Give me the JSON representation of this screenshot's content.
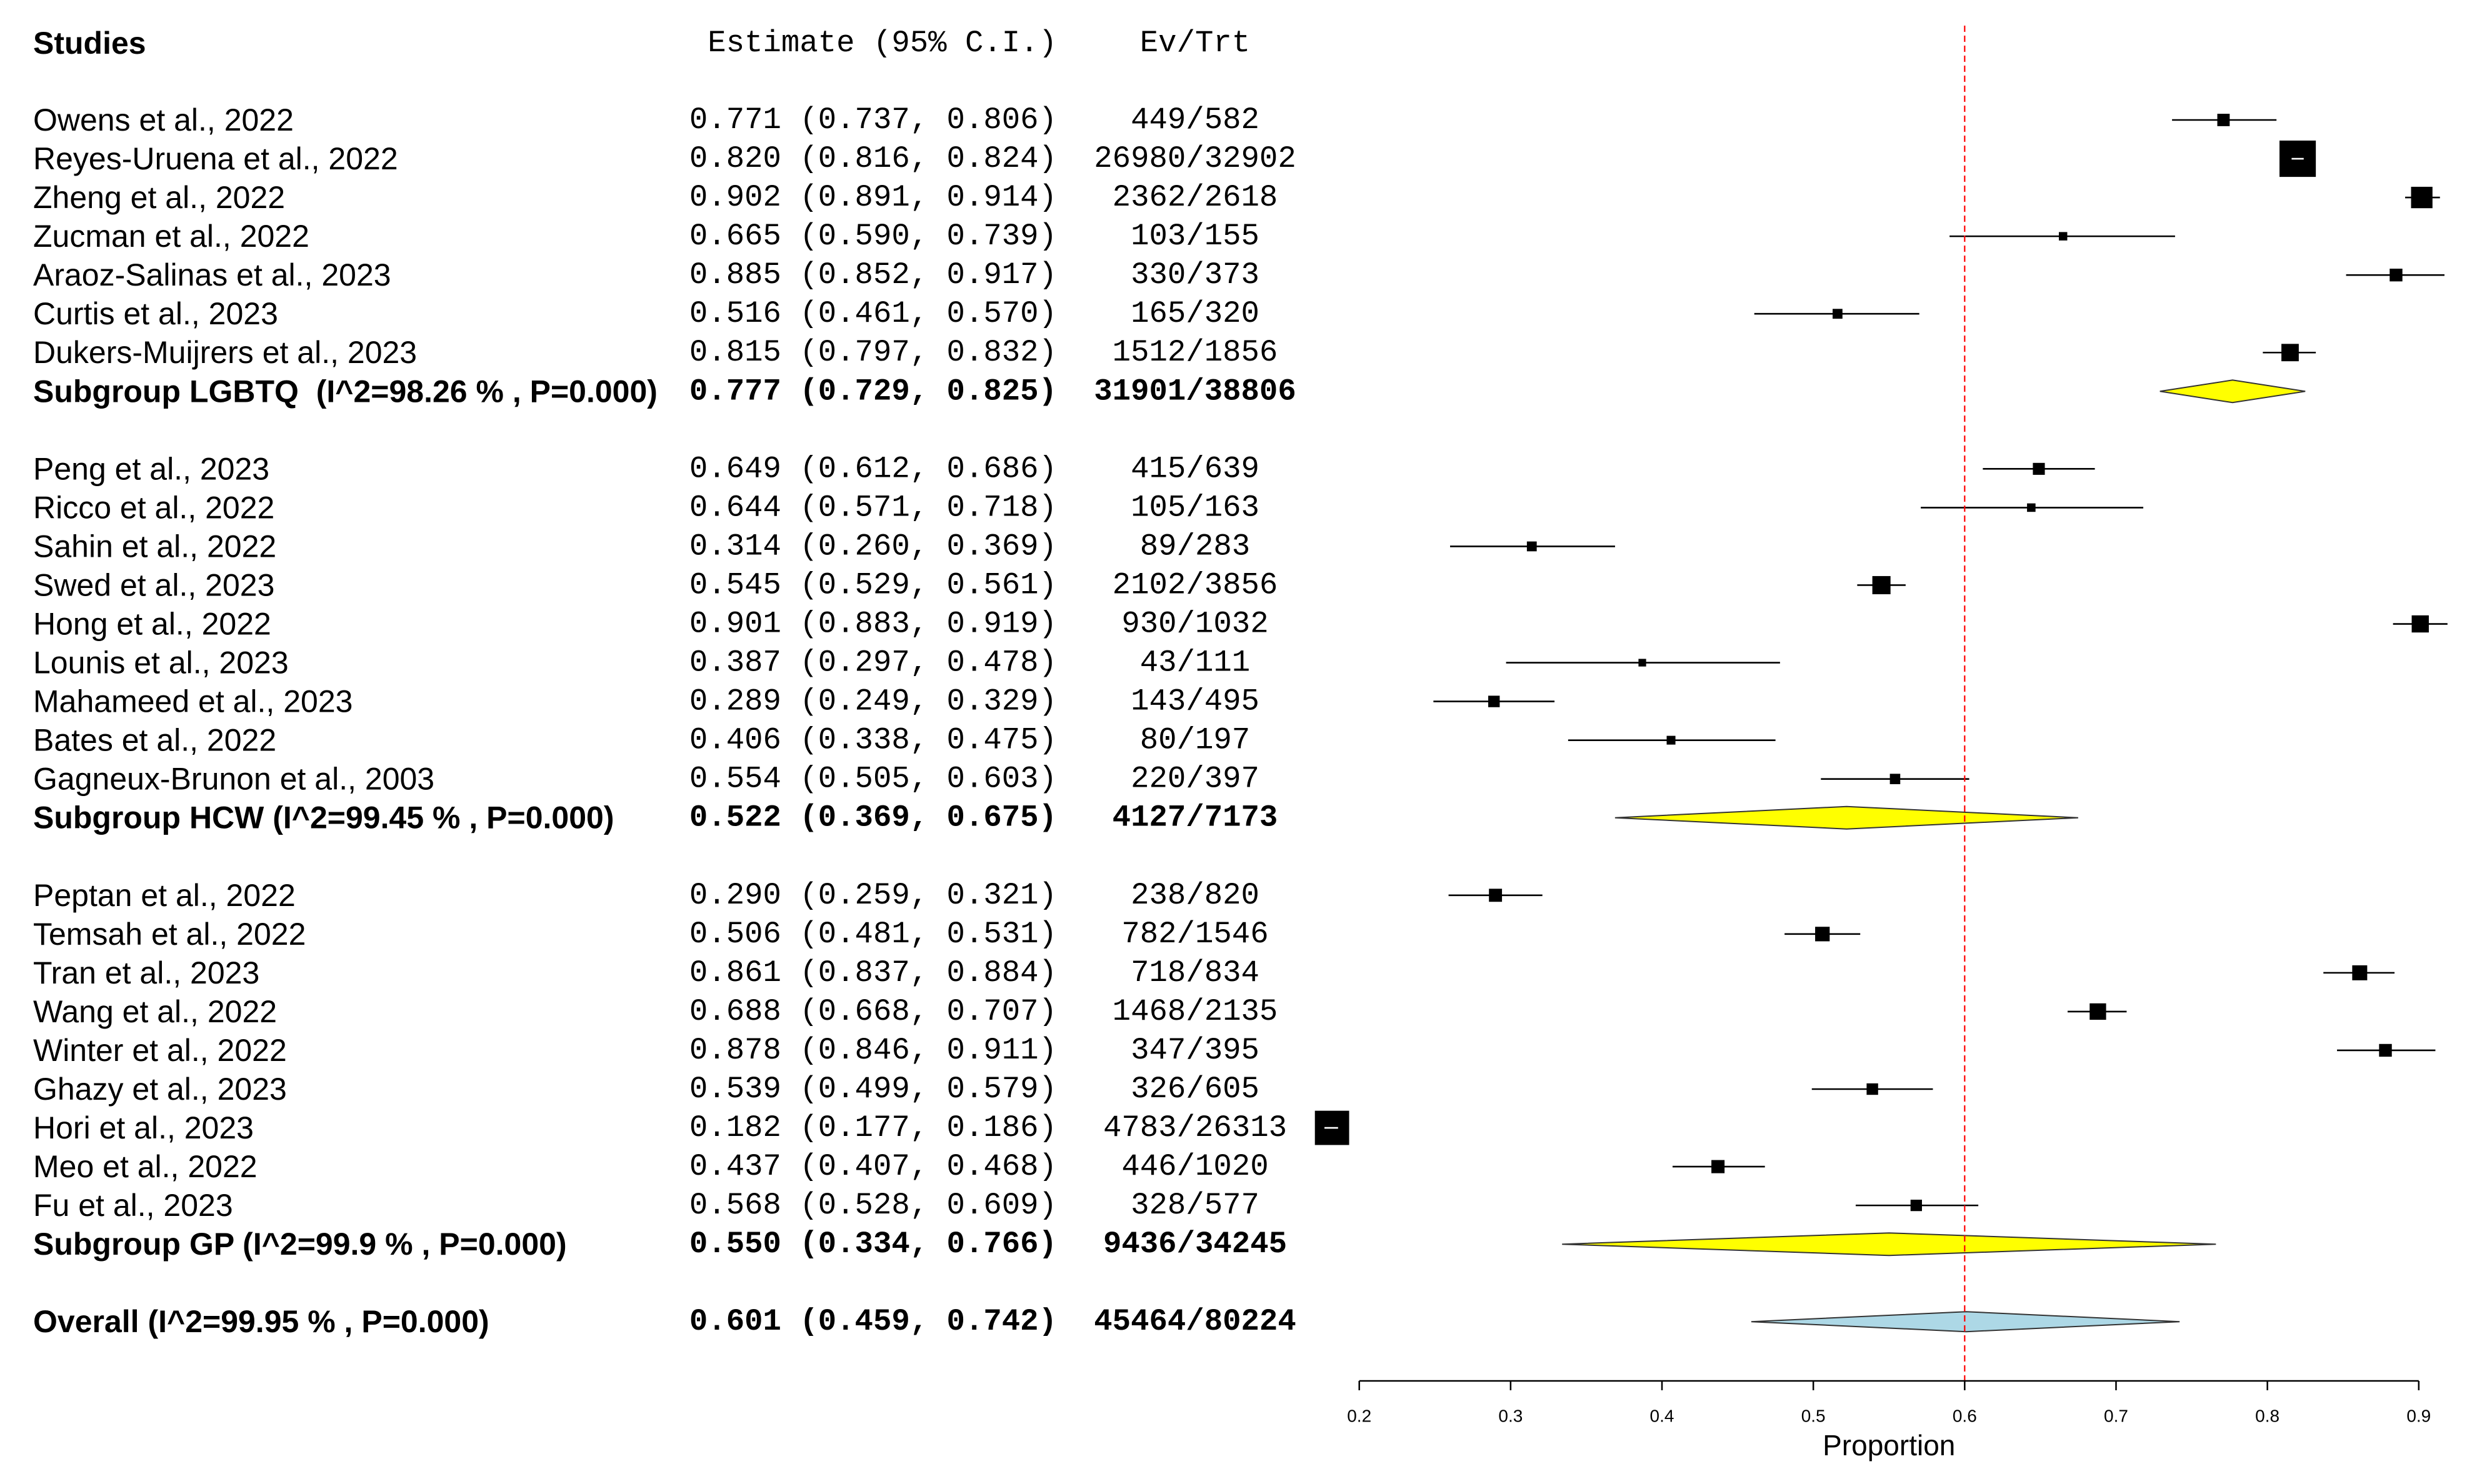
{
  "colors": {
    "background": "#ffffff",
    "text": "#000000",
    "marker": "#000000",
    "ci_inner": "#ffffff",
    "subgroup_diamond": "#ffff00",
    "overall_diamond": "#add8e6",
    "diamond_outline": "#333333",
    "reference_line": "#ff0000",
    "axis": "#000000"
  },
  "headers": {
    "studies": "Studies",
    "estimate": "Estimate (95% C.I.)",
    "ev_trt": "Ev/Trt"
  },
  "chart_data": {
    "type": "scatter",
    "xlabel": "Proportion",
    "xlim": [
      0.2,
      0.9
    ],
    "xticks": [
      "0.2",
      "0.3",
      "0.4",
      "0.5",
      "0.6",
      "0.7",
      "0.8",
      "0.9"
    ],
    "reference_line": 0.6,
    "groups": [
      {
        "studies": [
          {
            "label": "Owens et al., 2022",
            "estimate": 0.771,
            "lower": 0.737,
            "upper": 0.806,
            "ci_text": "0.771 (0.737, 0.806)",
            "ev_trt": "449/582"
          },
          {
            "label": "Reyes-Uruena et al., 2022",
            "estimate": 0.82,
            "lower": 0.816,
            "upper": 0.824,
            "ci_text": "0.820 (0.816, 0.824)",
            "ev_trt": "26980/32902"
          },
          {
            "label": "Zheng et al., 2022",
            "estimate": 0.902,
            "lower": 0.891,
            "upper": 0.914,
            "ci_text": "0.902 (0.891, 0.914)",
            "ev_trt": "2362/2618"
          },
          {
            "label": "Zucman et al., 2022",
            "estimate": 0.665,
            "lower": 0.59,
            "upper": 0.739,
            "ci_text": "0.665 (0.590, 0.739)",
            "ev_trt": "103/155"
          },
          {
            "label": "Araoz-Salinas et al., 2023",
            "estimate": 0.885,
            "lower": 0.852,
            "upper": 0.917,
            "ci_text": "0.885 (0.852, 0.917)",
            "ev_trt": "330/373"
          },
          {
            "label": "Curtis et al., 2023",
            "estimate": 0.516,
            "lower": 0.461,
            "upper": 0.57,
            "ci_text": "0.516 (0.461, 0.570)",
            "ev_trt": "165/320"
          },
          {
            "label": "Dukers-Muijrers et al., 2023",
            "estimate": 0.815,
            "lower": 0.797,
            "upper": 0.832,
            "ci_text": "0.815 (0.797, 0.832)",
            "ev_trt": "1512/1856"
          }
        ],
        "summary": {
          "label": "Subgroup LGBTQ  (I^2=98.26 % , P=0.000)",
          "estimate": 0.777,
          "lower": 0.729,
          "upper": 0.825,
          "ci_text": "0.777 (0.729, 0.825)",
          "ev_trt": "31901/38806"
        }
      },
      {
        "studies": [
          {
            "label": "Peng et al., 2023",
            "estimate": 0.649,
            "lower": 0.612,
            "upper": 0.686,
            "ci_text": "0.649 (0.612, 0.686)",
            "ev_trt": "415/639"
          },
          {
            "label": "Ricco et al., 2022",
            "estimate": 0.644,
            "lower": 0.571,
            "upper": 0.718,
            "ci_text": "0.644 (0.571, 0.718)",
            "ev_trt": "105/163"
          },
          {
            "label": "Sahin et al., 2022",
            "estimate": 0.314,
            "lower": 0.26,
            "upper": 0.369,
            "ci_text": "0.314 (0.260, 0.369)",
            "ev_trt": "89/283"
          },
          {
            "label": "Swed et al., 2023",
            "estimate": 0.545,
            "lower": 0.529,
            "upper": 0.561,
            "ci_text": "0.545 (0.529, 0.561)",
            "ev_trt": "2102/3856"
          },
          {
            "label": "Hong et al., 2022",
            "estimate": 0.901,
            "lower": 0.883,
            "upper": 0.919,
            "ci_text": "0.901 (0.883, 0.919)",
            "ev_trt": "930/1032"
          },
          {
            "label": "Lounis et al., 2023",
            "estimate": 0.387,
            "lower": 0.297,
            "upper": 0.478,
            "ci_text": "0.387 (0.297, 0.478)",
            "ev_trt": "43/111"
          },
          {
            "label": "Mahameed et al., 2023",
            "estimate": 0.289,
            "lower": 0.249,
            "upper": 0.329,
            "ci_text": "0.289 (0.249, 0.329)",
            "ev_trt": "143/495"
          },
          {
            "label": "Bates et al., 2022",
            "estimate": 0.406,
            "lower": 0.338,
            "upper": 0.475,
            "ci_text": "0.406 (0.338, 0.475)",
            "ev_trt": "80/197"
          },
          {
            "label": "Gagneux-Brunon et al., 2003",
            "estimate": 0.554,
            "lower": 0.505,
            "upper": 0.603,
            "ci_text": "0.554 (0.505, 0.603)",
            "ev_trt": "220/397"
          }
        ],
        "summary": {
          "label": "Subgroup HCW (I^2=99.45 % , P=0.000)",
          "estimate": 0.522,
          "lower": 0.369,
          "upper": 0.675,
          "ci_text": "0.522 (0.369, 0.675)",
          "ev_trt": "4127/7173"
        }
      },
      {
        "studies": [
          {
            "label": "Peptan et al., 2022",
            "estimate": 0.29,
            "lower": 0.259,
            "upper": 0.321,
            "ci_text": "0.290 (0.259, 0.321)",
            "ev_trt": "238/820"
          },
          {
            "label": "Temsah et al., 2022",
            "estimate": 0.506,
            "lower": 0.481,
            "upper": 0.531,
            "ci_text": "0.506 (0.481, 0.531)",
            "ev_trt": "782/1546"
          },
          {
            "label": "Tran et al., 2023",
            "estimate": 0.861,
            "lower": 0.837,
            "upper": 0.884,
            "ci_text": "0.861 (0.837, 0.884)",
            "ev_trt": "718/834"
          },
          {
            "label": "Wang et al., 2022",
            "estimate": 0.688,
            "lower": 0.668,
            "upper": 0.707,
            "ci_text": "0.688 (0.668, 0.707)",
            "ev_trt": "1468/2135"
          },
          {
            "label": "Winter et al., 2022",
            "estimate": 0.878,
            "lower": 0.846,
            "upper": 0.911,
            "ci_text": "0.878 (0.846, 0.911)",
            "ev_trt": "347/395"
          },
          {
            "label": "Ghazy et al., 2023",
            "estimate": 0.539,
            "lower": 0.499,
            "upper": 0.579,
            "ci_text": "0.539 (0.499, 0.579)",
            "ev_trt": "326/605"
          },
          {
            "label": "Hori et al., 2023",
            "estimate": 0.182,
            "lower": 0.177,
            "upper": 0.186,
            "ci_text": "0.182 (0.177, 0.186)",
            "ev_trt": "4783/26313"
          },
          {
            "label": "Meo et al., 2022",
            "estimate": 0.437,
            "lower": 0.407,
            "upper": 0.468,
            "ci_text": "0.437 (0.407, 0.468)",
            "ev_trt": "446/1020"
          },
          {
            "label": "Fu et al., 2023",
            "estimate": 0.568,
            "lower": 0.528,
            "upper": 0.609,
            "ci_text": "0.568 (0.528, 0.609)",
            "ev_trt": "328/577"
          }
        ],
        "summary": {
          "label": "Subgroup GP (I^2=99.9 % , P=0.000)",
          "estimate": 0.55,
          "lower": 0.334,
          "upper": 0.766,
          "ci_text": "0.550 (0.334, 0.766)",
          "ev_trt": "9436/34245"
        }
      }
    ],
    "overall": {
      "label": "Overall (I^2=99.95 % , P=0.000)",
      "estimate": 0.601,
      "lower": 0.459,
      "upper": 0.742,
      "ci_text": "0.601 (0.459, 0.742)",
      "ev_trt": "45464/80224"
    }
  }
}
